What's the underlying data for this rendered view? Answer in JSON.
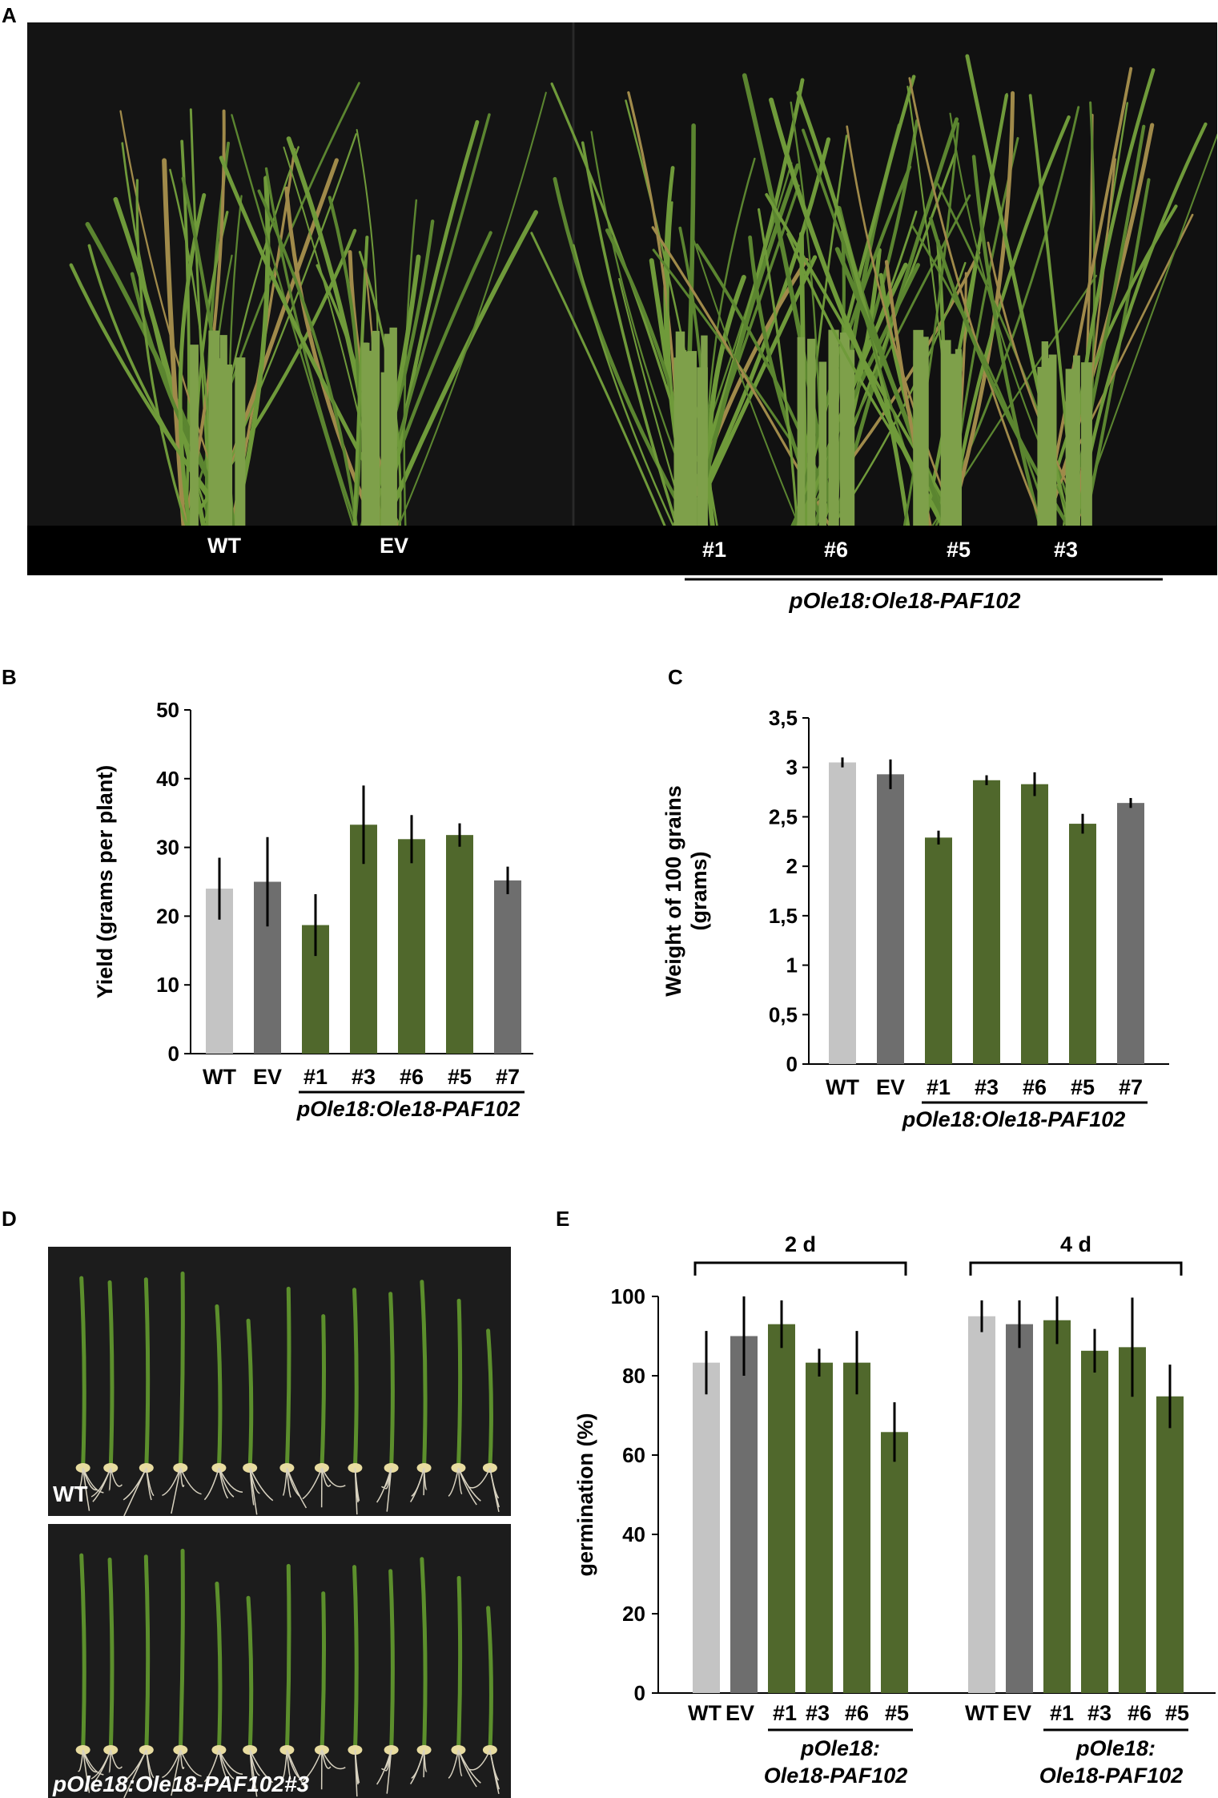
{
  "panels": {
    "A": {
      "letter": "A",
      "labels": [
        "WT",
        "EV",
        "#1",
        "#6",
        "#5",
        "#3"
      ],
      "construct": "pOle18:Ole18-PAF102"
    },
    "D": {
      "letter": "D",
      "top_label": "WT",
      "bottom_label": "pOle18:Ole18-PAF102#3"
    }
  },
  "colors": {
    "wt": "#c4c4c4",
    "ev": "#6e6e6e",
    "line_green": "#50682c",
    "line7": "#6e6e6e",
    "photo_bg": "#0c0c0c",
    "leaf": "#6f9a3a"
  },
  "chart_data": [
    {
      "letter": "B",
      "type": "bar",
      "title": "",
      "ylabel": "Yield (grams per plant)",
      "xlabel": "",
      "ylim": [
        0,
        50
      ],
      "yticks": [
        "0",
        "10",
        "20",
        "30",
        "40",
        "50"
      ],
      "categories": [
        "WT",
        "EV",
        "#1",
        "#3",
        "#6",
        "#5",
        "#7"
      ],
      "values": [
        24,
        25,
        18.7,
        33.3,
        31.2,
        31.8,
        25.2
      ],
      "errors": [
        4.5,
        6.5,
        4.5,
        5.7,
        3.5,
        1.7,
        2
      ],
      "group_label": "pOle18:Ole18-PAF102"
    },
    {
      "letter": "C",
      "type": "bar",
      "title": "",
      "ylabel": "Weight of 100 grains",
      "ylabel2": "(grams)",
      "xlabel": "",
      "ylim": [
        0,
        3.5
      ],
      "yticks": [
        "0",
        "0,5",
        "1",
        "1,5",
        "2",
        "2,5",
        "3",
        "3,5"
      ],
      "categories": [
        "WT",
        "EV",
        "#1",
        "#3",
        "#6",
        "#5",
        "#7"
      ],
      "values": [
        3.05,
        2.93,
        2.29,
        2.87,
        2.83,
        2.43,
        2.64
      ],
      "errors": [
        0.05,
        0.15,
        0.07,
        0.05,
        0.12,
        0.1,
        0.05
      ],
      "group_label": "pOle18:Ole18-PAF102"
    },
    {
      "letter": "E",
      "type": "bar",
      "title": "",
      "ylabel": "germination (%)",
      "xlabel": "",
      "ylim": [
        0,
        100
      ],
      "yticks": [
        "0",
        "20",
        "40",
        "60",
        "80",
        "100"
      ],
      "groups": [
        {
          "name": "2 d",
          "categories": [
            "WT",
            "EV",
            "#1",
            "#3",
            "#6",
            "#5"
          ],
          "values": [
            83.3,
            90,
            93,
            83.3,
            83.3,
            65.8
          ],
          "errors": [
            8,
            10,
            6,
            3.5,
            8,
            7.5
          ],
          "label1": "pOle18:",
          "label2": "Ole18-PAF102"
        },
        {
          "name": "4 d",
          "categories": [
            "WT",
            "EV",
            "#1",
            "#3",
            "#6",
            "#5"
          ],
          "values": [
            95,
            93,
            94,
            86.3,
            87.2,
            74.8
          ],
          "errors": [
            4,
            6,
            6,
            5.5,
            12.5,
            8
          ],
          "label1": "pOle18:",
          "label2": "Ole18-PAF102"
        }
      ]
    }
  ]
}
